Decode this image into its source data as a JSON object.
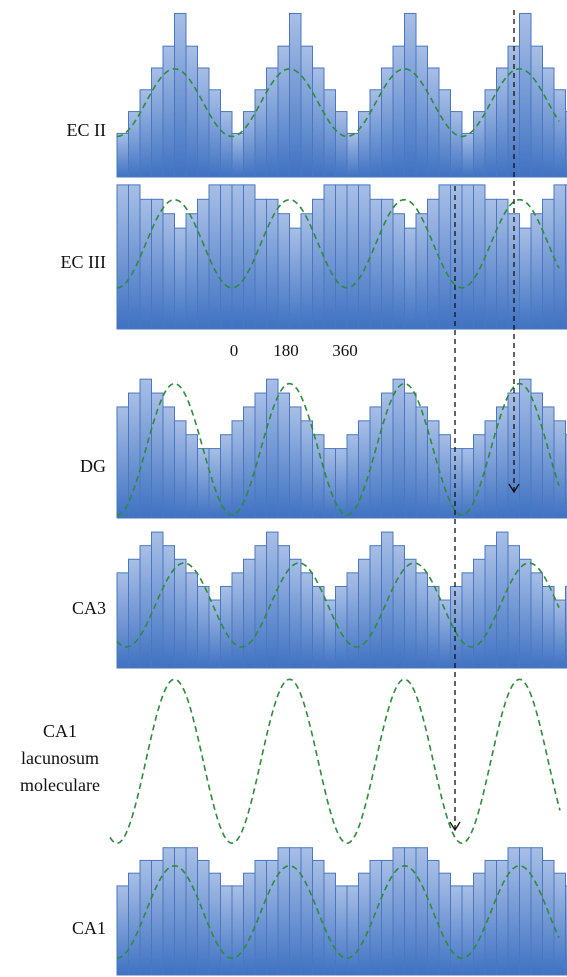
{
  "figure": {
    "colors": {
      "bar_top": "#a8bfe6",
      "bar_bottom": "#3f72c2",
      "bar_edge": "#4a77bf",
      "wave": "#2e8b3c",
      "arrow": "#111111",
      "text": "#111111"
    },
    "phase_ticks": [
      "0",
      "180",
      "360"
    ]
  },
  "chart_data": [
    {
      "type": "bar",
      "panel": "EC II",
      "label": "EC II",
      "values": [
        4,
        6,
        8,
        10,
        12,
        15,
        12,
        10,
        8,
        6,
        4,
        6,
        8,
        10,
        12,
        15,
        12,
        10,
        8,
        6,
        4,
        6,
        8,
        10,
        12,
        15,
        12,
        10,
        8,
        6,
        4,
        6,
        8,
        10,
        12,
        15,
        12,
        10,
        8,
        6
      ],
      "ylim": [
        0,
        15.5
      ],
      "bars_start_x": 117,
      "wave": {
        "period_bars": 10,
        "phase_deg": 180,
        "amp": 0.2,
        "mid": 0.56
      }
    },
    {
      "type": "bar",
      "panel": "EC III",
      "label": "EC III",
      "values": [
        10,
        10,
        9,
        9,
        8,
        7,
        8,
        9,
        10,
        10,
        10,
        10,
        9,
        9,
        8,
        7,
        8,
        9,
        10,
        10,
        10,
        10,
        9,
        9,
        8,
        7,
        8,
        9,
        10,
        10,
        10,
        10,
        9,
        9,
        8,
        7,
        8,
        9,
        10,
        10
      ],
      "ylim": [
        0,
        10.2
      ],
      "bars_start_x": 117,
      "wave": {
        "period_bars": 10,
        "phase_deg": 180,
        "amp": 0.3,
        "mid": 0.42
      }
    },
    {
      "type": "bar",
      "panel": "DG",
      "label": "DG",
      "values": [
        8,
        9,
        10,
        9,
        8,
        7,
        6,
        5,
        5,
        6,
        7,
        8,
        9,
        10,
        9,
        8,
        7,
        6,
        5,
        5,
        6,
        7,
        8,
        9,
        10,
        9,
        8,
        7,
        6,
        5,
        5,
        6,
        7,
        8,
        9,
        10,
        9,
        8,
        7,
        6
      ],
      "ylim": [
        0,
        10.3
      ],
      "bars_start_x": 117,
      "wave": {
        "period_bars": 10,
        "phase_deg": 180,
        "amp": 0.46,
        "mid": 0.52
      }
    },
    {
      "type": "bar",
      "panel": "CA3",
      "label": "CA3",
      "values": [
        7,
        8,
        9,
        10,
        9,
        8,
        7,
        6,
        5,
        6,
        7,
        8,
        9,
        10,
        9,
        8,
        7,
        6,
        5,
        6,
        7,
        8,
        9,
        10,
        9,
        8,
        7,
        6,
        5,
        6,
        7,
        8,
        9,
        10,
        9,
        8,
        7,
        6,
        5,
        6
      ],
      "ylim": [
        0,
        10.3
      ],
      "bars_start_x": 117,
      "wave": {
        "period_bars": 10,
        "phase_deg": 150,
        "amp": 0.3,
        "mid": 0.55
      }
    },
    {
      "type": "line",
      "panel": "CA1 lacunosum moleculare",
      "label_lines": [
        "CA1",
        "lacunosum",
        "moleculare"
      ],
      "wave": {
        "period_bars": 10,
        "phase_deg": 180,
        "amp": 0.5,
        "mid": 0.52
      }
    },
    {
      "type": "bar",
      "panel": "CA1",
      "label": "CA1",
      "values": [
        7,
        8,
        9,
        9,
        10,
        10,
        10,
        9,
        8,
        7,
        7,
        8,
        9,
        9,
        10,
        10,
        10,
        9,
        8,
        7,
        7,
        8,
        9,
        9,
        10,
        10,
        10,
        9,
        8,
        7,
        7,
        8,
        9,
        9,
        10,
        10,
        10,
        9,
        8,
        7
      ],
      "ylim": [
        0,
        11
      ],
      "bars_start_x": 117,
      "wave": {
        "period_bars": 10,
        "phase_deg": 180,
        "amp": 0.33,
        "mid": 0.55
      }
    }
  ]
}
